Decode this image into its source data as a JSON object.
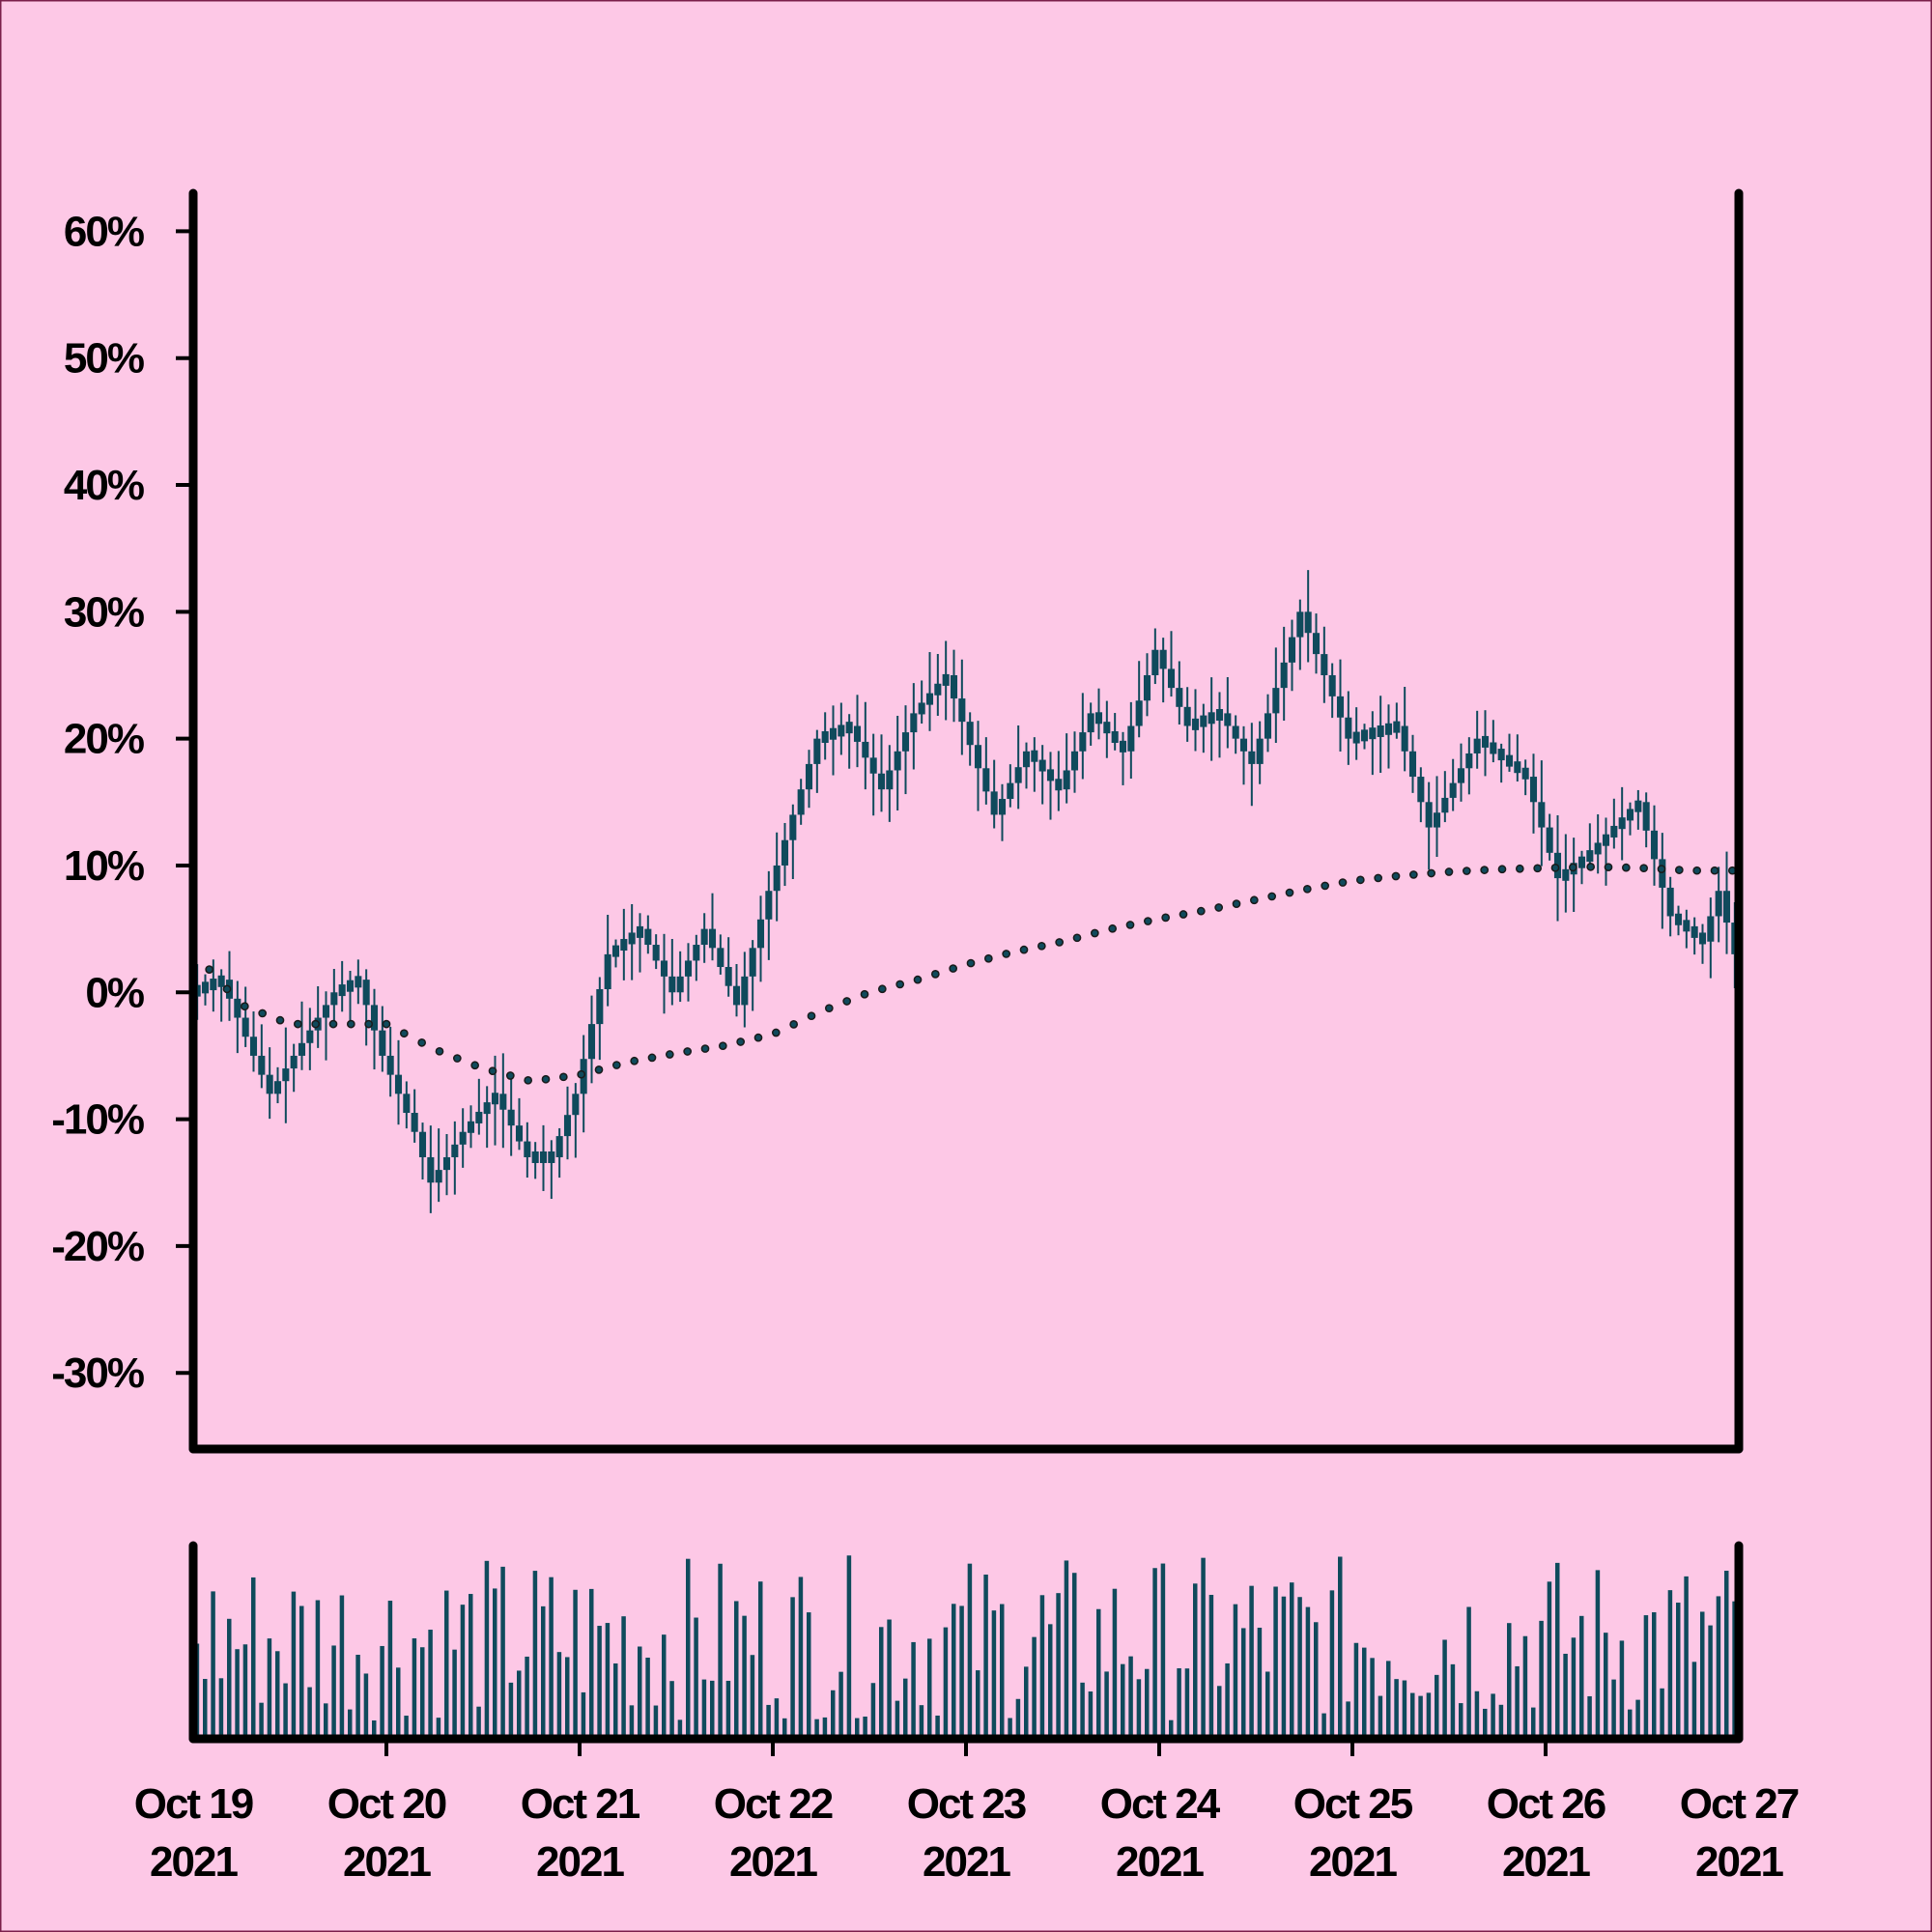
{
  "colors": {
    "background": "#fdc8e6",
    "border": "#7a1f4a",
    "axis": "#000000",
    "candle": "#0f4a5c",
    "wick": "#0f4a5c",
    "volume": "#0f4a5c",
    "moving_average": "#1a1a1a"
  },
  "chart_data": {
    "type": "candlestick",
    "title": "",
    "xlabel": "",
    "ylabel": "",
    "y_unit": "percent",
    "ylim": [
      -36,
      63
    ],
    "yticks": [
      -30,
      -20,
      -10,
      0,
      10,
      20,
      30,
      40,
      50,
      60
    ],
    "ytick_labels": [
      "-30%",
      "-20%",
      "-10%",
      "0%",
      "10%",
      "20%",
      "30%",
      "40%",
      "50%",
      "60%"
    ],
    "x_start": "2021-10-19",
    "x_end": "2021-10-27",
    "xtick_labels": [
      [
        "Oct 19",
        "2021"
      ],
      [
        "Oct 20",
        "2021"
      ],
      [
        "Oct 21",
        "2021"
      ],
      [
        "Oct 22",
        "2021"
      ],
      [
        "Oct 23",
        "2021"
      ],
      [
        "Oct 24",
        "2021"
      ],
      [
        "Oct 25",
        "2021"
      ],
      [
        "Oct 26",
        "2021"
      ],
      [
        "Oct 27",
        "2021"
      ]
    ],
    "grid": false,
    "legend": "none",
    "price_path": [
      [
        "2021-10-19 00:00",
        0
      ],
      [
        "2021-10-19 04:00",
        1
      ],
      [
        "2021-10-19 06:00",
        -2
      ],
      [
        "2021-10-19 10:00",
        -8
      ],
      [
        "2021-10-19 14:00",
        -4
      ],
      [
        "2021-10-19 18:00",
        0
      ],
      [
        "2021-10-19 21:00",
        1
      ],
      [
        "2021-10-20 00:00",
        -5
      ],
      [
        "2021-10-20 04:00",
        -11
      ],
      [
        "2021-10-20 06:00",
        -15
      ],
      [
        "2021-10-20 10:00",
        -11
      ],
      [
        "2021-10-20 14:00",
        -8
      ],
      [
        "2021-10-20 18:00",
        -13
      ],
      [
        "2021-10-20 21:00",
        -13
      ],
      [
        "2021-10-21 00:00",
        -8
      ],
      [
        "2021-10-21 04:00",
        3
      ],
      [
        "2021-10-21 08:00",
        5
      ],
      [
        "2021-10-21 12:00",
        0
      ],
      [
        "2021-10-21 16:00",
        5
      ],
      [
        "2021-10-21 20:00",
        -1
      ],
      [
        "2021-10-22 00:00",
        8
      ],
      [
        "2021-10-22 06:00",
        20
      ],
      [
        "2021-10-22 10:00",
        21
      ],
      [
        "2021-10-22 14:00",
        16
      ],
      [
        "2021-10-22 18:00",
        22
      ],
      [
        "2021-10-22 22:00",
        25
      ],
      [
        "2021-10-23 04:00",
        14
      ],
      [
        "2021-10-23 08:00",
        19
      ],
      [
        "2021-10-23 12:00",
        16
      ],
      [
        "2021-10-23 16:00",
        22
      ],
      [
        "2021-10-23 20:00",
        19
      ],
      [
        "2021-10-24 00:00",
        27
      ],
      [
        "2021-10-24 04:00",
        21
      ],
      [
        "2021-10-24 08:00",
        22
      ],
      [
        "2021-10-24 12:00",
        18
      ],
      [
        "2021-10-24 18:00",
        30
      ],
      [
        "2021-10-25 00:00",
        20
      ],
      [
        "2021-10-25 06:00",
        21
      ],
      [
        "2021-10-25 10:00",
        13
      ],
      [
        "2021-10-25 16:00",
        20
      ],
      [
        "2021-10-25 22:00",
        17
      ],
      [
        "2021-10-26 02:00",
        9
      ],
      [
        "2021-10-26 06:00",
        11
      ],
      [
        "2021-10-26 12:00",
        15
      ],
      [
        "2021-10-26 16:00",
        6
      ],
      [
        "2021-10-26 20:00",
        4
      ],
      [
        "2021-10-26 22:00",
        8
      ],
      [
        "2021-10-27 00:00",
        3
      ]
    ],
    "moving_average": [
      [
        "2021-10-19 02:00",
        1.8
      ],
      [
        "2021-10-19 06:00",
        -1.0
      ],
      [
        "2021-10-19 12:00",
        -2.5
      ],
      [
        "2021-10-19 18:00",
        -2.5
      ],
      [
        "2021-10-20 00:00",
        -2.5
      ],
      [
        "2021-10-20 06:00",
        -4.5
      ],
      [
        "2021-10-20 12:00",
        -6.0
      ],
      [
        "2021-10-20 18:00",
        -7.0
      ],
      [
        "2021-10-21 00:00",
        -6.5
      ],
      [
        "2021-10-21 06:00",
        -5.5
      ],
      [
        "2021-10-21 12:00",
        -4.8
      ],
      [
        "2021-10-21 18:00",
        -4.2
      ],
      [
        "2021-10-22 00:00",
        -3.3
      ],
      [
        "2021-10-22 06:00",
        -1.5
      ],
      [
        "2021-10-22 12:00",
        0.0
      ],
      [
        "2021-10-22 18:00",
        1.0
      ],
      [
        "2021-10-23 00:00",
        2.2
      ],
      [
        "2021-10-23 06:00",
        3.2
      ],
      [
        "2021-10-23 12:00",
        4.0
      ],
      [
        "2021-10-23 18:00",
        5.0
      ],
      [
        "2021-10-24 00:00",
        5.8
      ],
      [
        "2021-10-24 06:00",
        6.5
      ],
      [
        "2021-10-24 12:00",
        7.3
      ],
      [
        "2021-10-24 18:00",
        8.1
      ],
      [
        "2021-10-25 00:00",
        8.8
      ],
      [
        "2021-10-25 06:00",
        9.2
      ],
      [
        "2021-10-25 12:00",
        9.5
      ],
      [
        "2021-10-25 18:00",
        9.7
      ],
      [
        "2021-10-26 00:00",
        9.8
      ],
      [
        "2021-10-26 06:00",
        9.9
      ],
      [
        "2021-10-26 12:00",
        9.8
      ],
      [
        "2021-10-26 18:00",
        9.6
      ],
      [
        "2021-10-27 00:00",
        9.6
      ]
    ],
    "candle_interval_hours": 1,
    "volume": {
      "description_values_relative": true,
      "ylim": [
        0,
        1
      ],
      "seed": 7
    }
  }
}
